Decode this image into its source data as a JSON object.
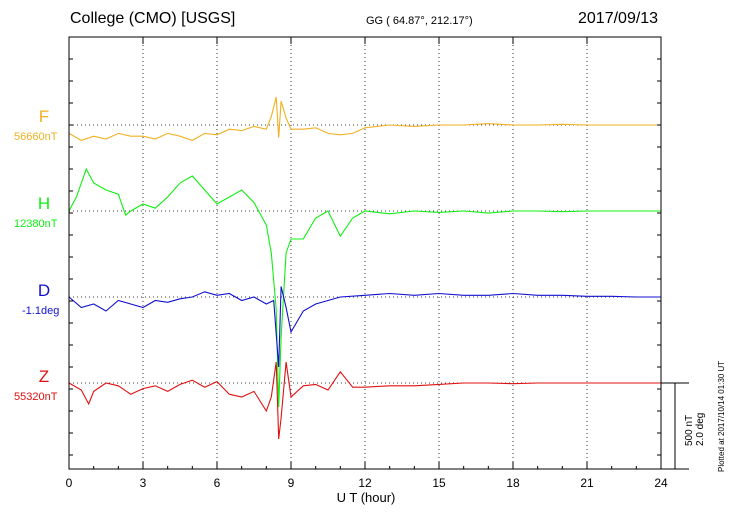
{
  "header": {
    "station": "College (CMO)  [USGS]",
    "coords": "GG ( 64.87°, 212.17°)",
    "date": "2017/09/13"
  },
  "channels": [
    {
      "name": "F",
      "base": "56660nT",
      "color": "#f0b020"
    },
    {
      "name": "H",
      "base": "12380nT",
      "color": "#10f010"
    },
    {
      "name": "D",
      "base": "-1.1deg",
      "color": "#1010d0"
    },
    {
      "name": "Z",
      "base": "55320nT",
      "color": "#e01010"
    }
  ],
  "scale_bar": {
    "line1": "500 nT",
    "line2": "2.0 deg"
  },
  "plotted_note": "Plotted at 2017/10/14 01:30 UT",
  "chart_data": {
    "type": "line",
    "title": "College (CMO)  [USGS]",
    "xlabel": "U T (hour)",
    "ylabel": "",
    "xlim": [
      0,
      24
    ],
    "x_ticks": [
      0,
      3,
      6,
      9,
      12,
      15,
      18,
      21,
      24
    ],
    "grid": true,
    "series": [
      {
        "name": "F",
        "x": [
          0,
          0.5,
          1,
          1.5,
          2,
          2.5,
          3,
          3.5,
          4,
          4.5,
          5,
          5.5,
          6,
          6.5,
          7,
          7.5,
          8,
          8.2,
          8.4,
          8.5,
          8.6,
          8.8,
          9,
          9.5,
          10,
          10.5,
          11,
          11.5,
          12,
          12.5,
          13,
          14,
          15,
          16,
          17,
          18,
          19,
          20,
          21,
          22,
          23,
          24
        ],
        "y": [
          -60,
          -110,
          -80,
          -100,
          -60,
          -80,
          -80,
          -100,
          -60,
          -80,
          -110,
          -60,
          -70,
          -30,
          -40,
          -10,
          -30,
          60,
          200,
          -90,
          170,
          50,
          -30,
          -30,
          -20,
          -60,
          -70,
          -60,
          -20,
          -10,
          0,
          -10,
          0,
          0,
          10,
          0,
          0,
          5,
          0,
          0,
          0,
          0
        ]
      },
      {
        "name": "H",
        "x": [
          0,
          0.3,
          0.7,
          1,
          1.5,
          2,
          2.3,
          2.5,
          3,
          3.5,
          4,
          4.5,
          5,
          5.5,
          6,
          6.5,
          7,
          7.5,
          8,
          8.2,
          8.4,
          8.5,
          8.6,
          8.8,
          9,
          9.5,
          10,
          10.5,
          11,
          11.5,
          12,
          13,
          14,
          15,
          16,
          17,
          18,
          19,
          20,
          21,
          22,
          23,
          24
        ],
        "y": [
          0,
          100,
          300,
          200,
          150,
          120,
          -30,
          0,
          50,
          20,
          100,
          200,
          250,
          150,
          50,
          100,
          150,
          60,
          -100,
          -300,
          -700,
          -1400,
          -900,
          -300,
          -200,
          -200,
          -50,
          0,
          -180,
          -50,
          0,
          -20,
          0,
          -10,
          0,
          -15,
          0,
          0,
          -5,
          0,
          0,
          0,
          0
        ]
      },
      {
        "name": "D",
        "x": [
          0,
          0.5,
          1,
          1.5,
          2,
          2.5,
          3,
          3.5,
          4,
          4.5,
          5,
          5.5,
          6,
          6.5,
          7,
          7.5,
          8,
          8.3,
          8.5,
          8.6,
          8.8,
          9,
          9.5,
          10,
          10.5,
          11,
          12,
          13,
          14,
          15,
          16,
          17,
          18,
          19,
          20,
          21,
          22,
          23,
          24
        ],
        "y": [
          0,
          -0.3,
          -0.2,
          -0.4,
          -0.1,
          -0.2,
          -0.3,
          -0.1,
          -0.15,
          -0.05,
          0,
          0.15,
          0.05,
          0.1,
          -0.1,
          0,
          -0.2,
          -0.1,
          -2.0,
          0.3,
          -0.3,
          -1.0,
          -0.4,
          -0.2,
          -0.1,
          0,
          0.05,
          0.1,
          0.05,
          0.1,
          0.05,
          0.05,
          0.1,
          0.05,
          0.05,
          0.02,
          0.02,
          0,
          0
        ]
      },
      {
        "name": "Z",
        "x": [
          0,
          0.5,
          0.8,
          1,
          1.5,
          2,
          2.5,
          3,
          3.5,
          4,
          4.5,
          5,
          5.5,
          6,
          6.5,
          7,
          7.5,
          8,
          8.2,
          8.4,
          8.5,
          8.6,
          8.8,
          9,
          9.5,
          10,
          10.5,
          11,
          11.5,
          12,
          13,
          14,
          15,
          16,
          17,
          18,
          19,
          20,
          21,
          22,
          23,
          24
        ],
        "y": [
          0,
          -50,
          -150,
          -60,
          0,
          -20,
          -80,
          -40,
          -20,
          -60,
          -10,
          20,
          -30,
          10,
          -80,
          -100,
          -60,
          -200,
          -100,
          150,
          -400,
          -250,
          150,
          -100,
          -20,
          -10,
          -50,
          80,
          -30,
          -30,
          -20,
          -20,
          -10,
          0,
          0,
          -5,
          0,
          0,
          0,
          0,
          0,
          0
        ]
      }
    ]
  }
}
